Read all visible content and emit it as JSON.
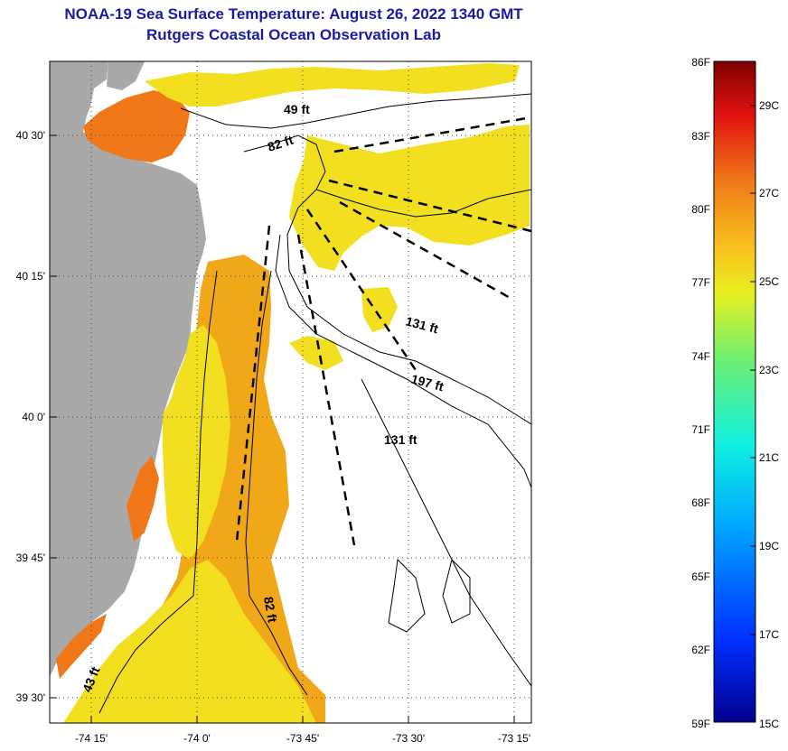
{
  "header": {
    "title": "NOAA-19 Sea Surface Temperature:  August 26, 2022 1340 GMT",
    "subtitle": "Rutgers Coastal Ocean Observation Lab"
  },
  "axes": {
    "lon_ticks": [
      "-74 15'",
      "-74 0'",
      "-73 45'",
      "-73 30'",
      "-73 15'"
    ],
    "lat_ticks": [
      "40 30'",
      "40 15'",
      "40 0'",
      "39 45'",
      "39 30'"
    ]
  },
  "contour_labels": [
    "49 ft",
    "82 ft",
    "131 ft",
    "197 ft",
    "131 ft",
    "82 ft",
    "43 ft"
  ],
  "colorbar": {
    "fahrenheit": [
      "86F",
      "83F",
      "80F",
      "77F",
      "74F",
      "71F",
      "68F",
      "65F",
      "62F",
      "59F"
    ],
    "celsius": [
      "29C",
      "27C",
      "25C",
      "23C",
      "21C",
      "19C",
      "17C",
      "15C"
    ]
  },
  "colors": {
    "title": "#1a1aa6",
    "land": "#a9a9a9",
    "sst_warm": "#f0a818",
    "sst_mid": "#f2df20",
    "sst_hot": "#f07818"
  }
}
